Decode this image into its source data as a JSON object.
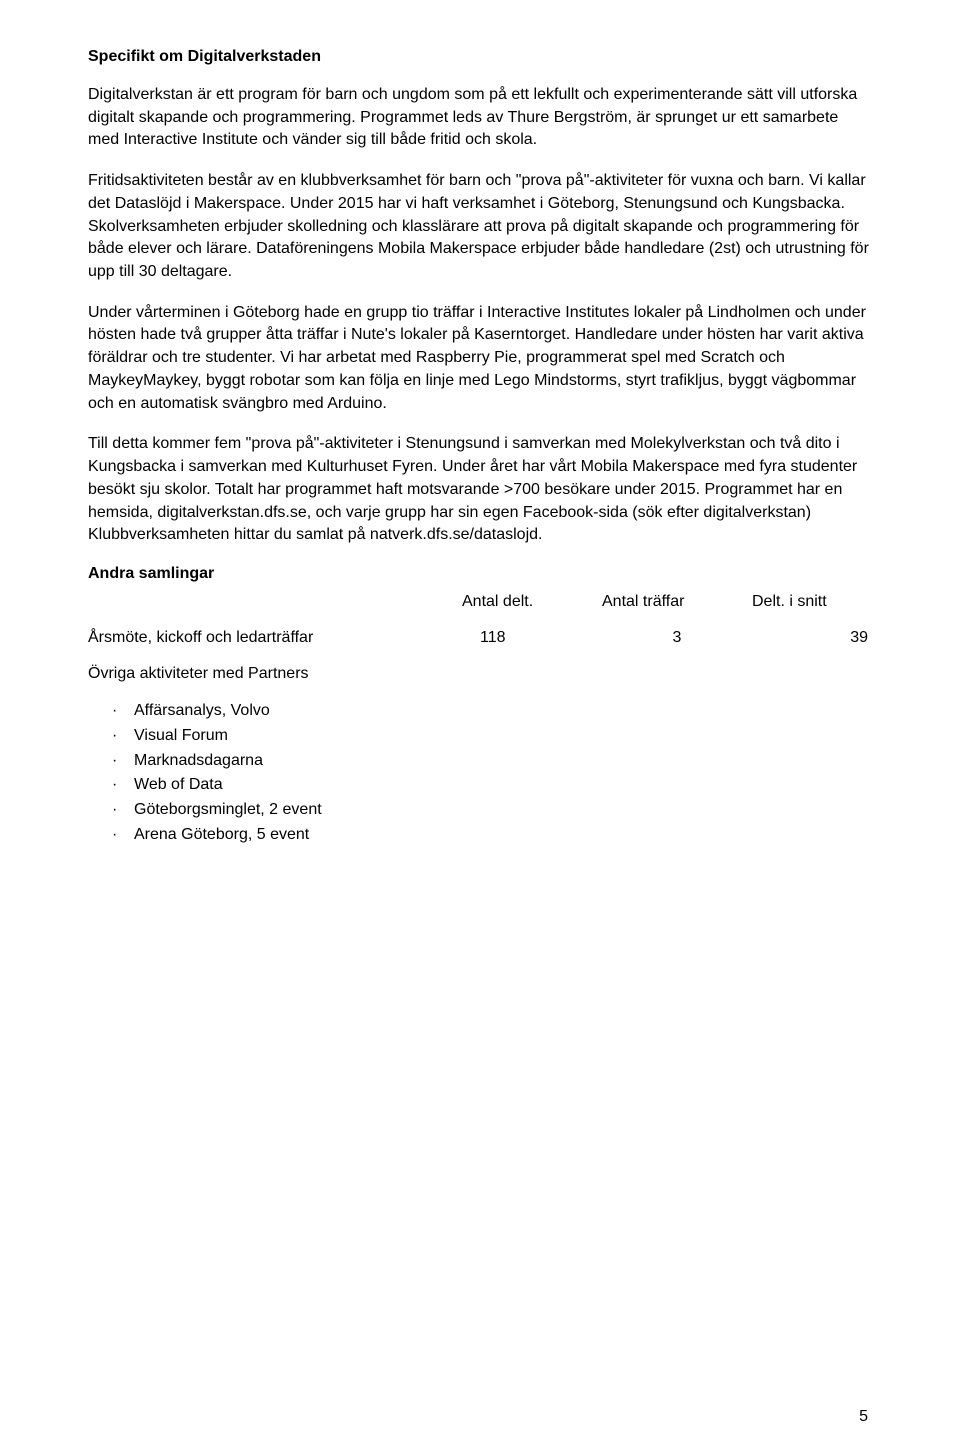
{
  "doc": {
    "heading": "Specifikt om Digitalverkstaden",
    "para1": "Digitalverkstan är ett program för barn och ungdom som på ett lekfullt och experimenterande sätt vill utforska digitalt skapande och programmering. Programmet leds av Thure Bergström, är sprunget ur ett samarbete med Interactive Institute och vänder sig till både fritid och skola.",
    "para2": "Fritidsaktiviteten består av en klubbverksamhet för barn och \"prova på\"-aktiviteter för vuxna och barn. Vi kallar det Dataslöjd i Makerspace. Under 2015 har vi haft verksamhet i Göteborg, Stenungsund och Kungsbacka. Skolverksamheten erbjuder skolledning och klasslärare att prova på digitalt skapande och programmering för både elever och lärare. Dataföreningens Mobila Makerspace erbjuder både handledare (2st) och utrustning för upp till 30 deltagare.",
    "para3": "Under vårterminen i Göteborg hade en grupp tio träffar i Interactive Institutes lokaler på Lindholmen och under hösten hade två grupper åtta träffar i Nute's lokaler på Kaserntorget. Handledare under hösten har varit aktiva föräldrar och tre studenter. Vi har arbetat med Raspberry Pie, programmerat spel med Scratch och MaykeyMaykey, byggt robotar som kan följa en linje med Lego Mindstorms, styrt trafikljus, byggt vägbommar och en automatisk svängbro med Arduino.",
    "para4": "Till detta kommer fem \"prova på\"-aktiviteter i Stenungsund i samverkan med Molekylverkstan och två dito i Kungsbacka i samverkan med Kulturhuset Fyren. Under året har vårt Mobila Makerspace med fyra studenter besökt sju skolor. Totalt har programmet haft motsvarande >700 besökare under 2015. Programmet har en hemsida, digitalverkstan.dfs.se, och varje grupp har sin egen Facebook-sida (sök efter digitalverkstan) Klubbverksamheten hittar du samlat på natverk.dfs.se/dataslojd.",
    "subheading": "Andra samlingar",
    "table": {
      "headers": [
        "Antal delt.",
        "Antal träffar",
        "Delt. i snitt"
      ],
      "row_label": "Årsmöte, kickoff och ledarträffar",
      "values": [
        "118",
        "3",
        "39"
      ]
    },
    "list_heading": "Övriga aktiviteter med Partners",
    "bullets": [
      "Affärsanalys, Volvo",
      "Visual Forum",
      "Marknadsdagarna",
      "Web of Data",
      "Göteborgsminglet, 2 event",
      "Arena Göteborg, 5 event"
    ],
    "page_number": "5"
  }
}
